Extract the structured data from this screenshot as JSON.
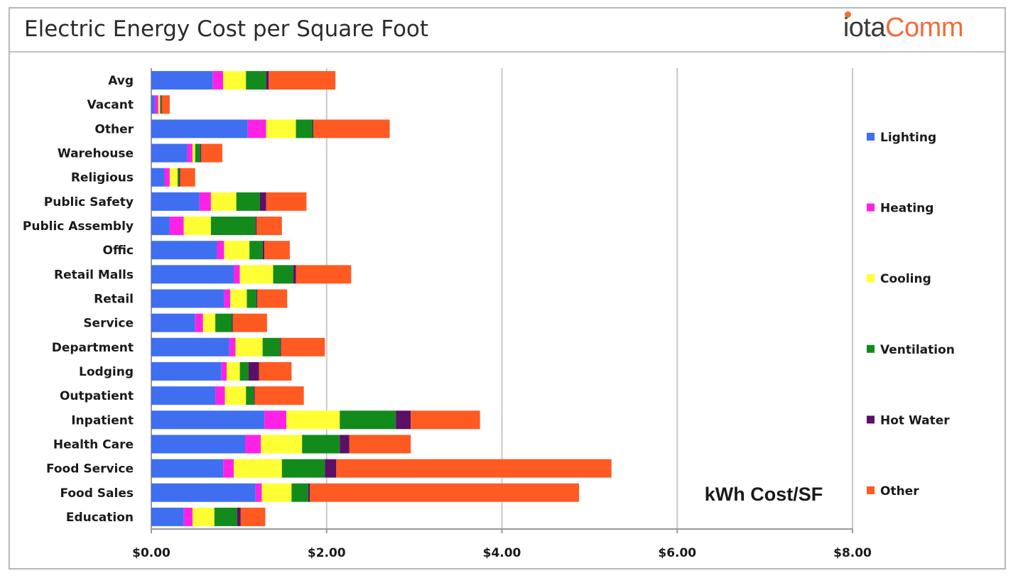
{
  "header": {
    "title": "Electric Energy Cost per Square Foot",
    "logo_text": "iotaComm",
    "logo_parts": [
      "iota",
      "Comm"
    ]
  },
  "annotation": "kWh Cost/SF",
  "chart_data": {
    "type": "bar",
    "orientation": "horizontal",
    "stacked": true,
    "title": "Electric Energy Cost per Square Foot",
    "xlabel": "",
    "ylabel": "",
    "xlim": [
      0,
      8
    ],
    "x_ticks": [
      0,
      2,
      4,
      6,
      8
    ],
    "x_tick_labels": [
      "$0.00",
      "$2.00",
      "$4.00",
      "$6.00",
      "$8.00"
    ],
    "grid": "vertical major gridlines",
    "legend_position": "right",
    "categories": [
      "Avg",
      "Vacant",
      "Other",
      "Warehouse",
      "Religious",
      "Public Safety",
      "Public Assembly",
      "Offic",
      "Retail Malls",
      "Retail",
      "Service",
      "Department",
      "Lodging",
      "Outpatient",
      "Inpatient",
      "Health Care",
      "Food Service",
      "Food Sales",
      "Education"
    ],
    "series": [
      {
        "name": "Lighting",
        "color": "#3f6ff0",
        "values": [
          0.7,
          0.04,
          1.1,
          0.41,
          0.15,
          0.55,
          0.21,
          0.75,
          0.94,
          0.83,
          0.5,
          0.89,
          0.8,
          0.73,
          1.29,
          1.07,
          0.82,
          1.19,
          0.37
        ]
      },
      {
        "name": "Heating",
        "color": "#ff22e6",
        "values": [
          0.12,
          0.04,
          0.21,
          0.06,
          0.06,
          0.13,
          0.16,
          0.08,
          0.07,
          0.07,
          0.09,
          0.07,
          0.06,
          0.11,
          0.25,
          0.18,
          0.12,
          0.07,
          0.1
        ]
      },
      {
        "name": "Cooling",
        "color": "#ffff33",
        "values": [
          0.26,
          0.02,
          0.34,
          0.03,
          0.09,
          0.29,
          0.31,
          0.29,
          0.38,
          0.19,
          0.14,
          0.31,
          0.15,
          0.24,
          0.61,
          0.47,
          0.55,
          0.34,
          0.25
        ]
      },
      {
        "name": "Ventilation",
        "color": "#138a1c",
        "values": [
          0.23,
          0.01,
          0.19,
          0.06,
          0.02,
          0.27,
          0.51,
          0.15,
          0.23,
          0.11,
          0.19,
          0.2,
          0.1,
          0.09,
          0.64,
          0.43,
          0.49,
          0.19,
          0.26
        ]
      },
      {
        "name": "Hot Water",
        "color": "#5b0f66",
        "values": [
          0.03,
          0.01,
          0.01,
          0.01,
          0.01,
          0.07,
          0.01,
          0.02,
          0.03,
          0.01,
          0.01,
          0.01,
          0.12,
          0.01,
          0.17,
          0.11,
          0.13,
          0.02,
          0.04
        ]
      },
      {
        "name": "Other",
        "color": "#ff5a22",
        "values": [
          0.76,
          0.09,
          0.87,
          0.24,
          0.17,
          0.46,
          0.29,
          0.29,
          0.63,
          0.34,
          0.39,
          0.5,
          0.37,
          0.56,
          0.79,
          0.7,
          3.14,
          3.07,
          0.28
        ]
      }
    ]
  }
}
